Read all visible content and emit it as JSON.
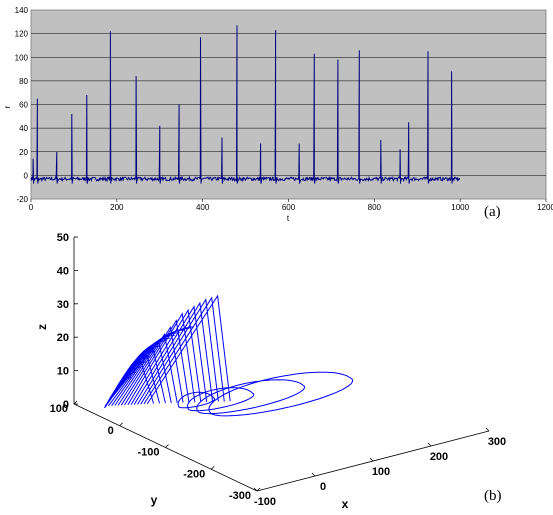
{
  "chart_data": [
    {
      "type": "line",
      "panel_label": "(a)",
      "xlabel": "t",
      "ylabel": "r",
      "xlim": [
        0,
        1200
      ],
      "ylim": [
        -20,
        140
      ],
      "xticks": [
        "0",
        "200",
        "400",
        "600",
        "800",
        "1000",
        "1200"
      ],
      "yticks": [
        "-20",
        "0",
        "20",
        "40",
        "60",
        "80",
        "100",
        "120",
        "140"
      ],
      "grid": true,
      "background_color": "#c0c0c0",
      "series_color": "#000080",
      "t_end": 1000,
      "baseline": -3,
      "spikes": [
        {
          "t": 5,
          "peak": 14
        },
        {
          "t": 15,
          "peak": 65
        },
        {
          "t": 60,
          "peak": 20
        },
        {
          "t": 95,
          "peak": 52
        },
        {
          "t": 130,
          "peak": 68
        },
        {
          "t": 185,
          "peak": 122
        },
        {
          "t": 245,
          "peak": 84
        },
        {
          "t": 300,
          "peak": 42
        },
        {
          "t": 345,
          "peak": 60
        },
        {
          "t": 395,
          "peak": 117
        },
        {
          "t": 445,
          "peak": 32
        },
        {
          "t": 480,
          "peak": 127
        },
        {
          "t": 535,
          "peak": 27
        },
        {
          "t": 570,
          "peak": 123
        },
        {
          "t": 625,
          "peak": 27
        },
        {
          "t": 660,
          "peak": 103
        },
        {
          "t": 715,
          "peak": 98
        },
        {
          "t": 765,
          "peak": 106
        },
        {
          "t": 815,
          "peak": 30
        },
        {
          "t": 860,
          "peak": 22
        },
        {
          "t": 880,
          "peak": 45
        },
        {
          "t": 925,
          "peak": 105
        },
        {
          "t": 980,
          "peak": 88
        }
      ]
    },
    {
      "type": "line3d",
      "panel_label": "(b)",
      "xlabel": "x",
      "ylabel": "y",
      "zlabel": "z",
      "xticks": [
        "-100",
        "0",
        "100",
        "200",
        "300"
      ],
      "yticks": [
        "100",
        "0",
        "-100",
        "-200",
        "-300"
      ],
      "zticks": [
        "0",
        "10",
        "20",
        "30",
        "40",
        "50"
      ],
      "xlim": [
        -100,
        300
      ],
      "ylim": [
        -300,
        100
      ],
      "zlim": [
        0,
        50
      ],
      "series_color": "#0000ff",
      "fan_peaks_z": [
        12,
        14,
        16,
        18,
        20,
        22,
        24,
        26,
        27,
        28,
        29,
        30,
        30.5,
        31
      ],
      "loops": [
        {
          "center_x": 40,
          "center_y": 10,
          "rx": 30,
          "ry": 12
        },
        {
          "center_x": 70,
          "center_y": -5,
          "rx": 55,
          "ry": 20
        },
        {
          "center_x": 110,
          "center_y": -20,
          "rx": 90,
          "ry": 30
        },
        {
          "center_x": 150,
          "center_y": -35,
          "rx": 120,
          "ry": 40
        }
      ]
    }
  ]
}
